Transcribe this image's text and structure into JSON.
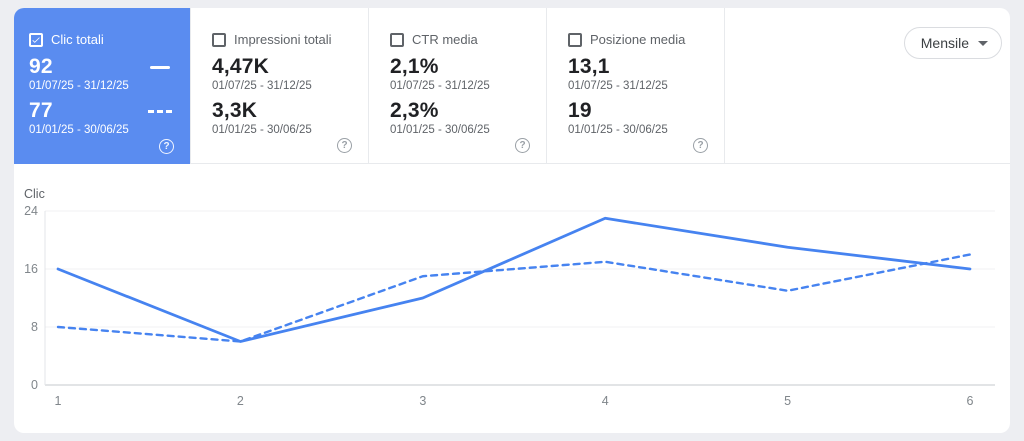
{
  "colors": {
    "page_bg": "#edeef2",
    "panel_bg": "#ffffff",
    "selected_card_bg": "#5a8cf0",
    "line_blue": "#4683f0",
    "divider": "#e8eaed",
    "axis_text": "#80868b"
  },
  "glyphs": {
    "help": "?"
  },
  "header": {
    "period_button": {
      "label": "Mensile"
    },
    "cards": [
      {
        "label": "Clic totali",
        "checked": true,
        "selected": true,
        "current": {
          "value": "92",
          "range": "01/07/25 - 31/12/25"
        },
        "previous": {
          "value": "77",
          "range": "01/01/25 - 30/06/25"
        }
      },
      {
        "label": "Impressioni totali",
        "checked": false,
        "selected": false,
        "current": {
          "value": "4,47K",
          "range": "01/07/25 - 31/12/25"
        },
        "previous": {
          "value": "3,3K",
          "range": "01/01/25 - 30/06/25"
        }
      },
      {
        "label": "CTR media",
        "checked": false,
        "selected": false,
        "current": {
          "value": "2,1%",
          "range": "01/07/25 - 31/12/25"
        },
        "previous": {
          "value": "2,3%",
          "range": "01/01/25 - 30/06/25"
        }
      },
      {
        "label": "Posizione media",
        "checked": false,
        "selected": false,
        "current": {
          "value": "13,1",
          "range": "01/07/25 - 31/12/25"
        },
        "previous": {
          "value": "19",
          "range": "01/01/25 - 30/06/25"
        }
      }
    ]
  },
  "chart_data": {
    "type": "line",
    "title": "",
    "ylabel": "Clic",
    "xlabel": "",
    "x": [
      1,
      2,
      3,
      4,
      5,
      6
    ],
    "series": [
      {
        "name": "Clic totali 01/07/25 - 31/12/25",
        "style": "solid",
        "values": [
          16,
          6,
          12,
          23,
          19,
          16
        ]
      },
      {
        "name": "Clic totali 01/01/25 - 30/06/25",
        "style": "dashed",
        "values": [
          8,
          6,
          15,
          17,
          13,
          18
        ]
      }
    ],
    "ylim": [
      0,
      24
    ],
    "yticks": [
      0,
      8,
      16,
      24
    ],
    "grid": true,
    "legend_position": "none",
    "line_color": "#4683f0"
  }
}
